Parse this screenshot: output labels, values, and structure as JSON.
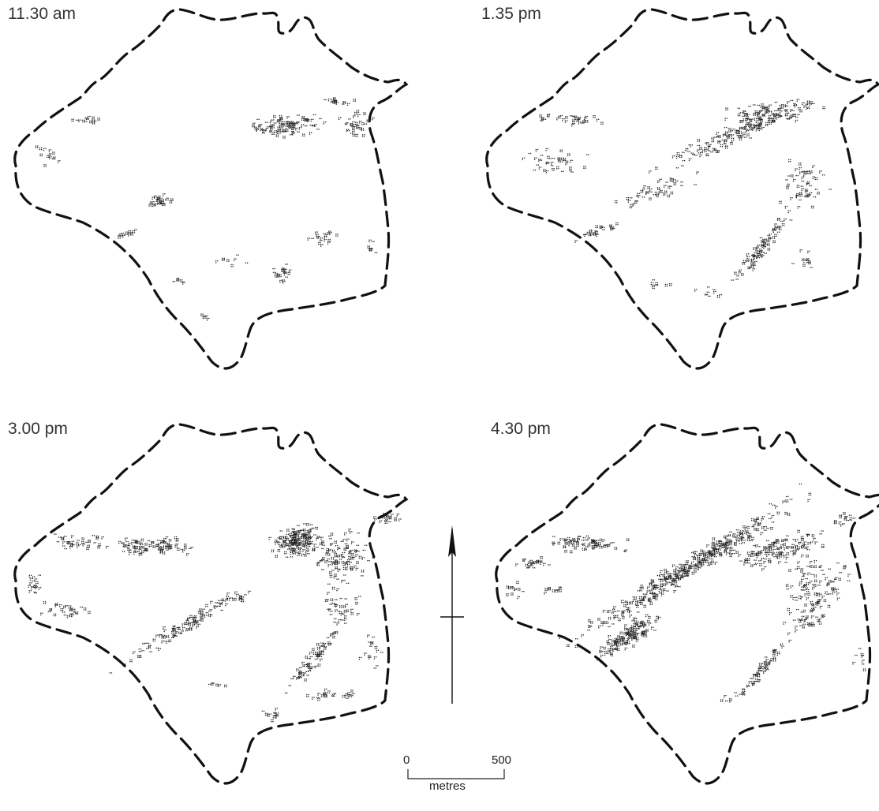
{
  "figure": {
    "panels": [
      {
        "time": "11.30 am"
      },
      {
        "time": "1.35 pm"
      },
      {
        "time": "3.00 pm"
      },
      {
        "time": "4.30 pm"
      }
    ],
    "scale_bar": {
      "start": "0",
      "end": "500",
      "unit": "metres"
    }
  },
  "colors": {
    "outline": "#111111",
    "dots": "#222222",
    "background": "#ffffff"
  },
  "icons": [
    "north-arrow-icon"
  ]
}
